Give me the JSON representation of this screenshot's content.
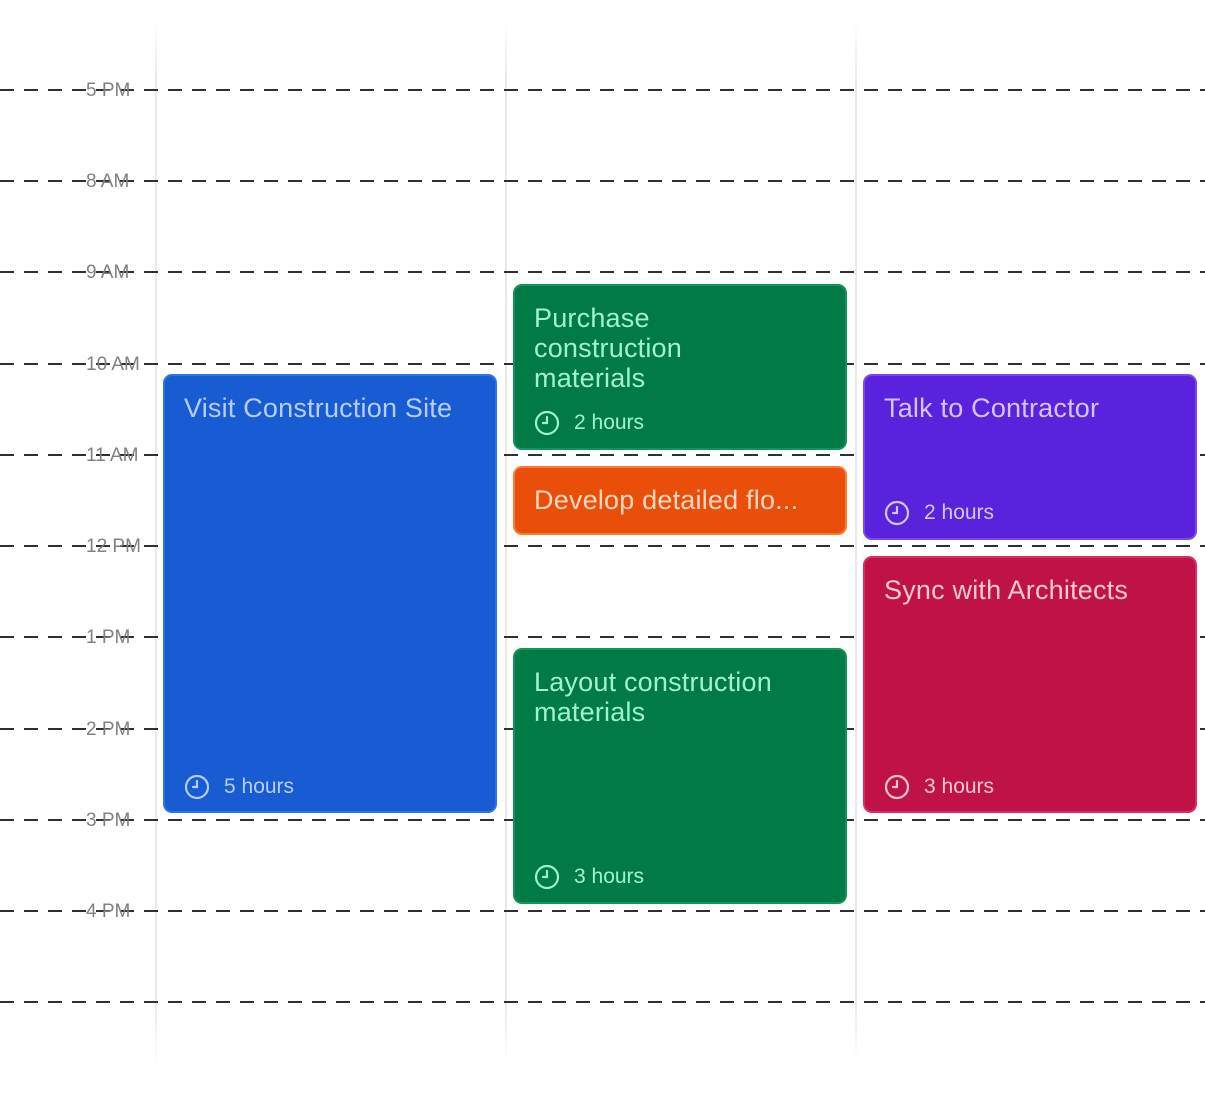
{
  "colors": {
    "blue_bg": "#195bd2",
    "blue_border": "#2d73e8",
    "blue_text": "#b5cffc",
    "green_bg": "#017a45",
    "green_border": "#109460",
    "green_text": "#9ff3cc",
    "orange_bg": "#ea4e0b",
    "orange_border": "#fb7b34",
    "orange_text": "#ffd9bf",
    "purple_bg": "#5b22de",
    "purple_border": "#7c46f3",
    "purple_text": "#d4c6fb",
    "crimson_bg": "#bf1246",
    "crimson_border": "#dc2e62",
    "crimson_text": "#f8c8d6",
    "grid_line": "#2f2f2f",
    "time_label": "#808080"
  },
  "time_labels": [
    "5 PM",
    "8 AM",
    "9 AM",
    "10 AM",
    "11 AM",
    "12 PM",
    "1 PM",
    "2 PM",
    "3 PM",
    "4 PM"
  ],
  "events": [
    {
      "title": "Visit Construction Site",
      "duration": "5 hours",
      "color": "blue",
      "icon": "clock-icon"
    },
    {
      "title": "Purchase construction materials",
      "duration": "2 hours",
      "color": "green",
      "icon": "clock-icon"
    },
    {
      "title": "Develop detailed flo...",
      "color": "orange"
    },
    {
      "title": "Layout construction materials",
      "duration": "3 hours",
      "color": "green",
      "icon": "clock-icon"
    },
    {
      "title": "Talk to Contractor",
      "duration": "2 hours",
      "color": "purple",
      "icon": "clock-icon"
    },
    {
      "title": "Sync with Architects",
      "duration": "3 hours",
      "color": "crimson",
      "icon": "clock-icon"
    }
  ]
}
